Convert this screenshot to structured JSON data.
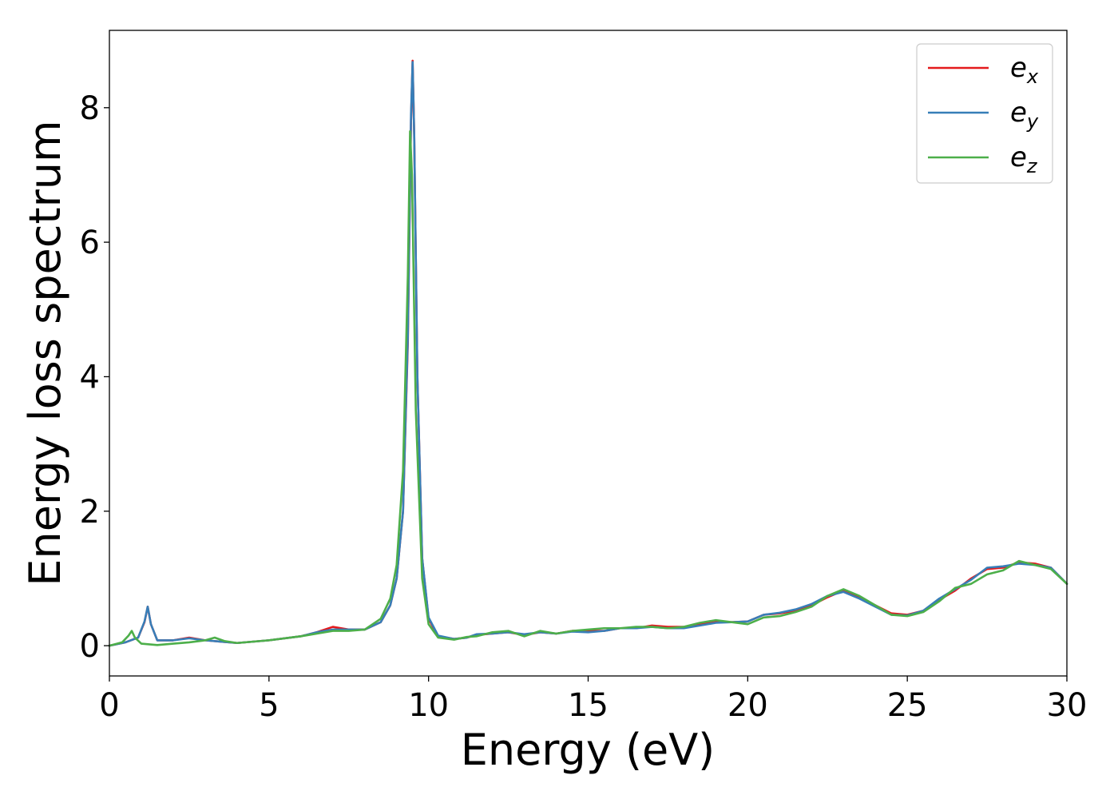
{
  "chart_data": {
    "type": "line",
    "xlabel": "Energy (eV)",
    "ylabel": "Energy loss spectrum",
    "xlim": [
      0,
      30
    ],
    "ylim": [
      -0.45,
      9.15
    ],
    "xticks": [
      0,
      5,
      10,
      15,
      20,
      25,
      30
    ],
    "xtick_labels": [
      "0",
      "5",
      "10",
      "15",
      "20",
      "25",
      "30"
    ],
    "yticks": [
      0,
      2,
      4,
      6,
      8
    ],
    "ytick_labels": [
      "0",
      "2",
      "4",
      "6",
      "8"
    ],
    "grid": false,
    "legend_position": "top-right",
    "series": [
      {
        "name": "e_x",
        "legend_base": "e",
        "legend_sub": "x",
        "color": "#e41a1c",
        "points": [
          [
            0,
            0
          ],
          [
            0.5,
            0.05
          ],
          [
            0.9,
            0.12
          ],
          [
            1.1,
            0.35
          ],
          [
            1.2,
            0.58
          ],
          [
            1.3,
            0.32
          ],
          [
            1.5,
            0.08
          ],
          [
            2.0,
            0.08
          ],
          [
            2.5,
            0.12
          ],
          [
            3.0,
            0.08
          ],
          [
            3.5,
            0.06
          ],
          [
            4.0,
            0.04
          ],
          [
            5.0,
            0.08
          ],
          [
            6.0,
            0.14
          ],
          [
            6.5,
            0.2
          ],
          [
            7.0,
            0.28
          ],
          [
            7.5,
            0.24
          ],
          [
            8.0,
            0.24
          ],
          [
            8.5,
            0.35
          ],
          [
            8.8,
            0.6
          ],
          [
            9.0,
            1.0
          ],
          [
            9.2,
            2.0
          ],
          [
            9.35,
            4.5
          ],
          [
            9.45,
            7.8
          ],
          [
            9.5,
            8.7
          ],
          [
            9.55,
            7.6
          ],
          [
            9.65,
            4.0
          ],
          [
            9.8,
            1.3
          ],
          [
            10.0,
            0.4
          ],
          [
            10.3,
            0.14
          ],
          [
            10.8,
            0.1
          ],
          [
            11.2,
            0.12
          ],
          [
            11.5,
            0.16
          ],
          [
            12.0,
            0.18
          ],
          [
            12.5,
            0.2
          ],
          [
            13.0,
            0.16
          ],
          [
            13.5,
            0.2
          ],
          [
            14.0,
            0.18
          ],
          [
            14.5,
            0.22
          ],
          [
            15.0,
            0.22
          ],
          [
            15.5,
            0.22
          ],
          [
            16.0,
            0.26
          ],
          [
            16.5,
            0.26
          ],
          [
            17.0,
            0.3
          ],
          [
            17.5,
            0.28
          ],
          [
            18.0,
            0.28
          ],
          [
            18.5,
            0.32
          ],
          [
            19.0,
            0.35
          ],
          [
            19.5,
            0.35
          ],
          [
            20.0,
            0.36
          ],
          [
            20.5,
            0.46
          ],
          [
            21.0,
            0.48
          ],
          [
            21.5,
            0.52
          ],
          [
            22.0,
            0.6
          ],
          [
            22.5,
            0.72
          ],
          [
            23.0,
            0.82
          ],
          [
            23.5,
            0.72
          ],
          [
            24.0,
            0.6
          ],
          [
            24.5,
            0.48
          ],
          [
            25.0,
            0.46
          ],
          [
            25.5,
            0.52
          ],
          [
            26.0,
            0.68
          ],
          [
            26.5,
            0.82
          ],
          [
            27.0,
            1.0
          ],
          [
            27.5,
            1.14
          ],
          [
            28.0,
            1.16
          ],
          [
            28.5,
            1.24
          ],
          [
            29.0,
            1.22
          ],
          [
            29.5,
            1.16
          ],
          [
            30.0,
            0.92
          ]
        ]
      },
      {
        "name": "e_y",
        "legend_base": "e",
        "legend_sub": "y",
        "color": "#377eb8",
        "points": [
          [
            0,
            0
          ],
          [
            0.5,
            0.05
          ],
          [
            0.9,
            0.12
          ],
          [
            1.1,
            0.36
          ],
          [
            1.2,
            0.58
          ],
          [
            1.3,
            0.32
          ],
          [
            1.5,
            0.08
          ],
          [
            2.0,
            0.08
          ],
          [
            2.5,
            0.11
          ],
          [
            3.0,
            0.08
          ],
          [
            3.5,
            0.06
          ],
          [
            4.0,
            0.04
          ],
          [
            5.0,
            0.08
          ],
          [
            6.0,
            0.14
          ],
          [
            6.5,
            0.2
          ],
          [
            7.0,
            0.24
          ],
          [
            7.5,
            0.24
          ],
          [
            8.0,
            0.24
          ],
          [
            8.5,
            0.35
          ],
          [
            8.8,
            0.6
          ],
          [
            9.0,
            1.0
          ],
          [
            9.2,
            2.0
          ],
          [
            9.35,
            4.6
          ],
          [
            9.45,
            7.9
          ],
          [
            9.5,
            8.68
          ],
          [
            9.55,
            7.6
          ],
          [
            9.65,
            4.0
          ],
          [
            9.8,
            1.3
          ],
          [
            10.0,
            0.42
          ],
          [
            10.3,
            0.15
          ],
          [
            10.8,
            0.1
          ],
          [
            11.2,
            0.12
          ],
          [
            11.5,
            0.17
          ],
          [
            12.0,
            0.18
          ],
          [
            12.5,
            0.2
          ],
          [
            13.0,
            0.17
          ],
          [
            13.5,
            0.2
          ],
          [
            14.0,
            0.18
          ],
          [
            14.5,
            0.21
          ],
          [
            15.0,
            0.2
          ],
          [
            15.5,
            0.22
          ],
          [
            16.0,
            0.26
          ],
          [
            16.5,
            0.26
          ],
          [
            17.0,
            0.28
          ],
          [
            17.5,
            0.26
          ],
          [
            18.0,
            0.26
          ],
          [
            18.5,
            0.3
          ],
          [
            19.0,
            0.34
          ],
          [
            19.5,
            0.35
          ],
          [
            20.0,
            0.36
          ],
          [
            20.5,
            0.46
          ],
          [
            21.0,
            0.49
          ],
          [
            21.5,
            0.54
          ],
          [
            22.0,
            0.62
          ],
          [
            22.5,
            0.74
          ],
          [
            23.0,
            0.8
          ],
          [
            23.5,
            0.7
          ],
          [
            24.0,
            0.58
          ],
          [
            24.5,
            0.46
          ],
          [
            25.0,
            0.45
          ],
          [
            25.5,
            0.52
          ],
          [
            26.0,
            0.7
          ],
          [
            26.5,
            0.84
          ],
          [
            27.0,
            0.98
          ],
          [
            27.5,
            1.16
          ],
          [
            28.0,
            1.18
          ],
          [
            28.5,
            1.22
          ],
          [
            29.0,
            1.2
          ],
          [
            29.5,
            1.16
          ],
          [
            30.0,
            0.92
          ]
        ]
      },
      {
        "name": "e_z",
        "legend_base": "e",
        "legend_sub": "z",
        "color": "#4daf4a",
        "points": [
          [
            0,
            0
          ],
          [
            0.4,
            0.05
          ],
          [
            0.6,
            0.15
          ],
          [
            0.7,
            0.22
          ],
          [
            0.8,
            0.12
          ],
          [
            1.0,
            0.03
          ],
          [
            1.5,
            0.01
          ],
          [
            2.0,
            0.03
          ],
          [
            2.5,
            0.05
          ],
          [
            3.0,
            0.08
          ],
          [
            3.3,
            0.12
          ],
          [
            3.6,
            0.07
          ],
          [
            4.0,
            0.04
          ],
          [
            5.0,
            0.08
          ],
          [
            6.0,
            0.14
          ],
          [
            6.5,
            0.18
          ],
          [
            7.0,
            0.22
          ],
          [
            7.5,
            0.22
          ],
          [
            8.0,
            0.24
          ],
          [
            8.5,
            0.4
          ],
          [
            8.8,
            0.7
          ],
          [
            9.0,
            1.2
          ],
          [
            9.2,
            2.6
          ],
          [
            9.35,
            5.5
          ],
          [
            9.42,
            7.65
          ],
          [
            9.48,
            7.0
          ],
          [
            9.6,
            3.5
          ],
          [
            9.8,
            1.0
          ],
          [
            10.0,
            0.32
          ],
          [
            10.3,
            0.12
          ],
          [
            10.8,
            0.09
          ],
          [
            11.2,
            0.13
          ],
          [
            11.5,
            0.14
          ],
          [
            12.0,
            0.2
          ],
          [
            12.5,
            0.22
          ],
          [
            13.0,
            0.14
          ],
          [
            13.5,
            0.22
          ],
          [
            14.0,
            0.18
          ],
          [
            14.5,
            0.22
          ],
          [
            15.0,
            0.24
          ],
          [
            15.5,
            0.26
          ],
          [
            16.0,
            0.26
          ],
          [
            16.5,
            0.28
          ],
          [
            17.0,
            0.28
          ],
          [
            17.5,
            0.26
          ],
          [
            18.0,
            0.28
          ],
          [
            18.5,
            0.34
          ],
          [
            19.0,
            0.38
          ],
          [
            19.5,
            0.35
          ],
          [
            20.0,
            0.32
          ],
          [
            20.5,
            0.42
          ],
          [
            21.0,
            0.44
          ],
          [
            21.5,
            0.5
          ],
          [
            22.0,
            0.58
          ],
          [
            22.5,
            0.74
          ],
          [
            23.0,
            0.84
          ],
          [
            23.5,
            0.74
          ],
          [
            24.0,
            0.6
          ],
          [
            24.5,
            0.46
          ],
          [
            25.0,
            0.44
          ],
          [
            25.5,
            0.5
          ],
          [
            26.0,
            0.66
          ],
          [
            26.5,
            0.86
          ],
          [
            27.0,
            0.92
          ],
          [
            27.5,
            1.06
          ],
          [
            28.0,
            1.12
          ],
          [
            28.5,
            1.26
          ],
          [
            29.0,
            1.2
          ],
          [
            29.5,
            1.14
          ],
          [
            30.0,
            0.92
          ]
        ]
      }
    ]
  }
}
